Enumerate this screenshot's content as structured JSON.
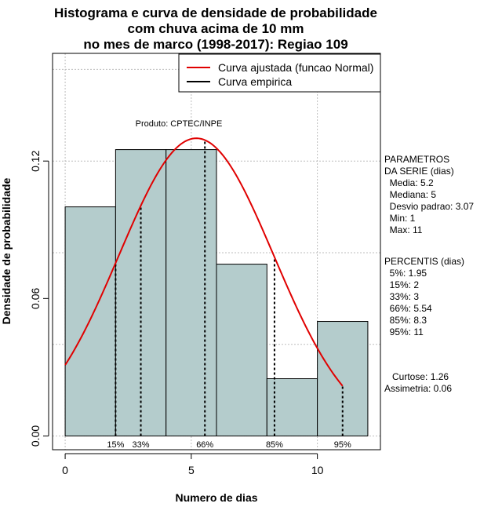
{
  "chart_data": {
    "type": "bar",
    "title_lines": [
      "Histograma e curva de densidade de probabilidade",
      "com chuva acima de 10 mm",
      "no mes de marco (1998-2017): Regiao 109"
    ],
    "xlabel": "Numero de dias",
    "ylabel": "Densidade de probabilidade",
    "xlim": [
      -0.5,
      12.5
    ],
    "ylim": [
      -0.006,
      0.167
    ],
    "x_ticks": [
      0,
      5,
      10
    ],
    "x_tick_labels": [
      "0",
      "5",
      "10"
    ],
    "y_ticks": [
      0.0,
      0.06,
      0.12
    ],
    "y_tick_labels": [
      "0.00",
      "0.06",
      "0.12"
    ],
    "grid": true,
    "legend_position": "top-right",
    "bins": [
      {
        "x0": 0,
        "x1": 2,
        "density": 0.1
      },
      {
        "x0": 2,
        "x1": 4,
        "density": 0.125
      },
      {
        "x0": 4,
        "x1": 6,
        "density": 0.125
      },
      {
        "x0": 6,
        "x1": 8,
        "density": 0.075
      },
      {
        "x0": 8,
        "x1": 10,
        "density": 0.025
      },
      {
        "x0": 10,
        "x1": 12,
        "density": 0.05
      }
    ],
    "bar_color": "#b4cccc",
    "normal_fit": {
      "mean": 5.2,
      "sd": 3.07,
      "x_from": 0,
      "x_to": 11,
      "color": "#e00000"
    },
    "series": [
      {
        "name": "Curva ajustada (funcao Normal)",
        "color": "#e00000"
      },
      {
        "name": "Curva empirica",
        "color": "#000000"
      }
    ],
    "percentile_marks": [
      {
        "label": "15%",
        "x": 2
      },
      {
        "label": "33%",
        "x": 3
      },
      {
        "label": "66%",
        "x": 5.54
      },
      {
        "label": "85%",
        "x": 8.3
      },
      {
        "label": "95%",
        "x": 11
      }
    ],
    "annotation": "Produto: CPTEC/INPE",
    "side_text": {
      "params_lines": [
        "PARAMETROS",
        "DA SERIE (dias)",
        "  Media: 5.2",
        "  Mediana: 5",
        "  Desvio padrao: 3.07",
        "  Min: 1",
        "  Max: 11"
      ],
      "percentis_lines": [
        "PERCENTIS (dias)",
        "  5%: 1.95",
        "  15%: 2",
        "  33%: 3",
        "  66%: 5.54",
        "  85%: 8.3",
        "  95%: 11"
      ],
      "stats_lines": [
        "   Curtose: 1.26",
        "Assimetria: 0.06"
      ]
    }
  }
}
